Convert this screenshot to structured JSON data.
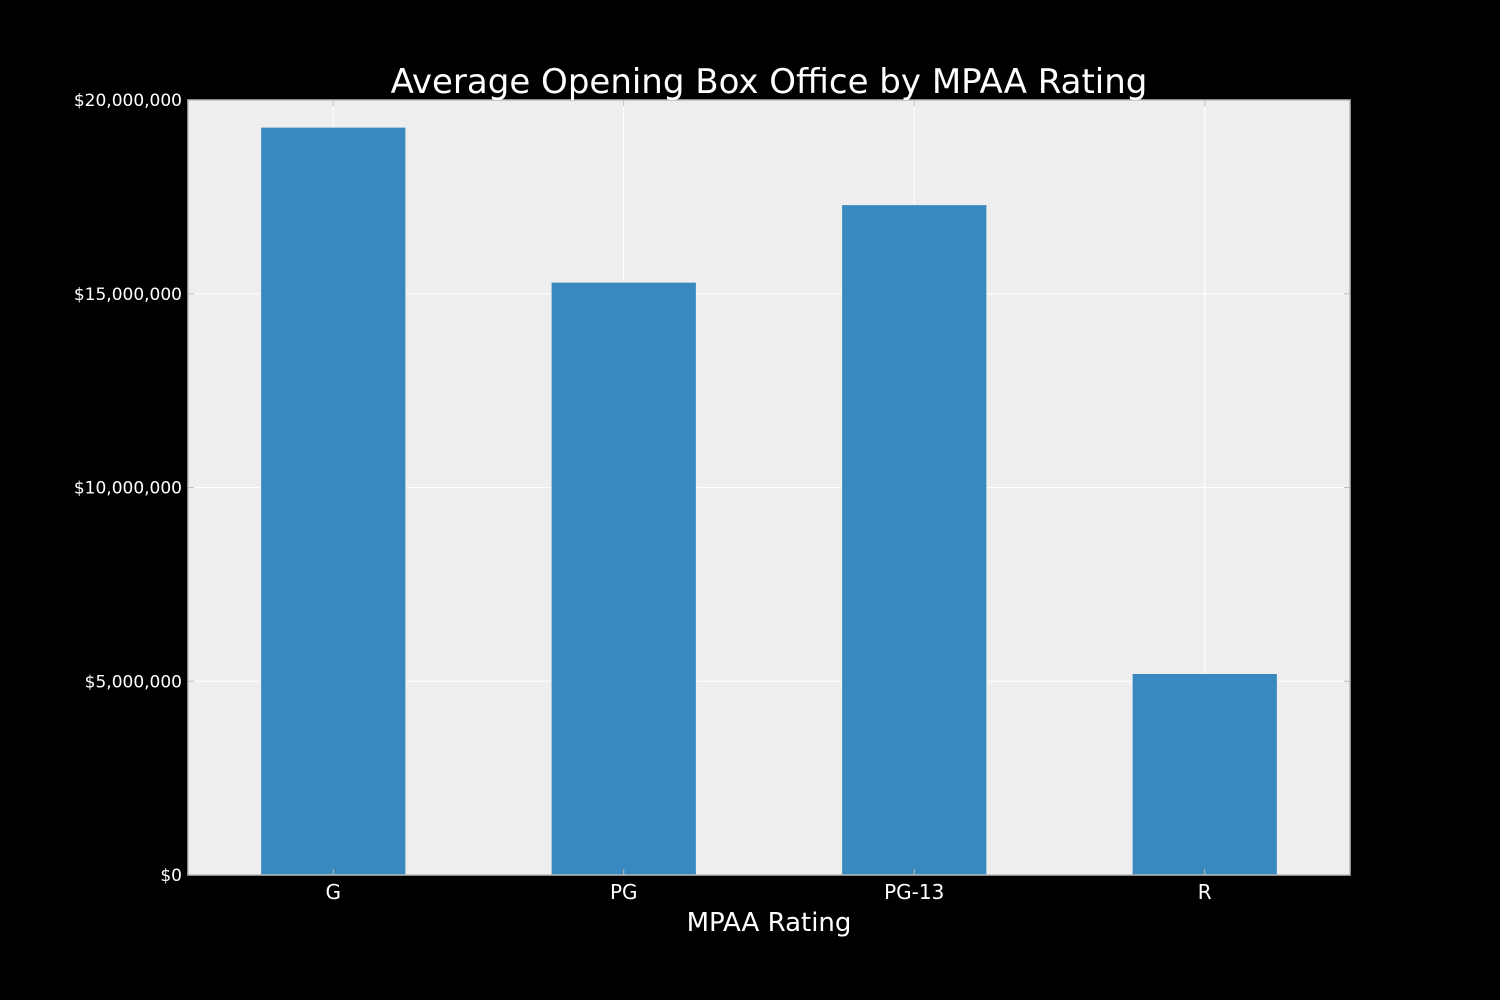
{
  "chart_data": {
    "type": "bar",
    "title": "Average Opening Box Office by MPAA Rating",
    "xlabel": "MPAA Rating",
    "ylabel": "",
    "categories": [
      "G",
      "PG",
      "PG-13",
      "R"
    ],
    "values": [
      19300000,
      15300000,
      17300000,
      5200000
    ],
    "ylim": [
      0,
      20000000
    ],
    "yticks": [
      0,
      5000000,
      10000000,
      15000000,
      20000000
    ],
    "ytick_labels": [
      "$0",
      "$5,000,000",
      "$10,000,000",
      "$15,000,000",
      "$20,000,000"
    ],
    "grid": true,
    "legend": "none",
    "colors": {
      "background": "#000000",
      "plot_area": "#eeeeee",
      "bar": "#3789bf",
      "bar_edge": "#eeeeee",
      "grid": "#ffffff",
      "text": "#ffffff",
      "frame": "#bcbcbc"
    }
  }
}
